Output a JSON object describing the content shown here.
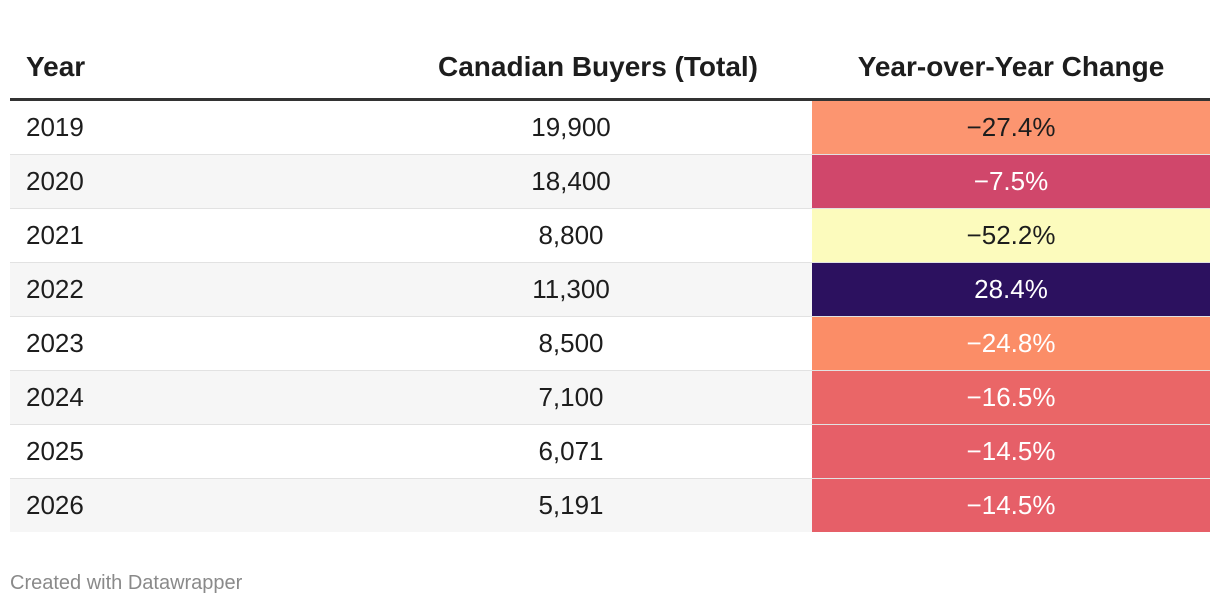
{
  "chart_data": {
    "type": "table",
    "columns": [
      "Year",
      "Canadian Buyers (Total)",
      "Year-over-Year Change"
    ],
    "rows": [
      {
        "year": "2019",
        "buyers": "19,900",
        "change": "−27.4%",
        "change_value": -27.4,
        "bg": "#fc9570",
        "fg": "#1d1d1d"
      },
      {
        "year": "2020",
        "buyers": "18,400",
        "change": "−7.5%",
        "change_value": -7.5,
        "bg": "#d0476b",
        "fg": "#ffffff"
      },
      {
        "year": "2021",
        "buyers": "8,800",
        "change": "−52.2%",
        "change_value": -52.2,
        "bg": "#fcfbbd",
        "fg": "#1d1d1d"
      },
      {
        "year": "2022",
        "buyers": "11,300",
        "change": "28.4%",
        "change_value": 28.4,
        "bg": "#2c115f",
        "fg": "#ffffff"
      },
      {
        "year": "2023",
        "buyers": "8,500",
        "change": "−24.8%",
        "change_value": -24.8,
        "bg": "#fb8d67",
        "fg": "#ffffff"
      },
      {
        "year": "2024",
        "buyers": "7,100",
        "change": "−16.5%",
        "change_value": -16.5,
        "bg": "#ea6667",
        "fg": "#ffffff"
      },
      {
        "year": "2025",
        "buyers": "6,071",
        "change": "−14.5%",
        "change_value": -14.5,
        "bg": "#e65f68",
        "fg": "#ffffff"
      },
      {
        "year": "2026",
        "buyers": "5,191",
        "change": "−14.5%",
        "change_value": -14.5,
        "bg": "#e65f68",
        "fg": "#ffffff"
      }
    ]
  },
  "footer": {
    "credit": "Created with Datawrapper"
  }
}
